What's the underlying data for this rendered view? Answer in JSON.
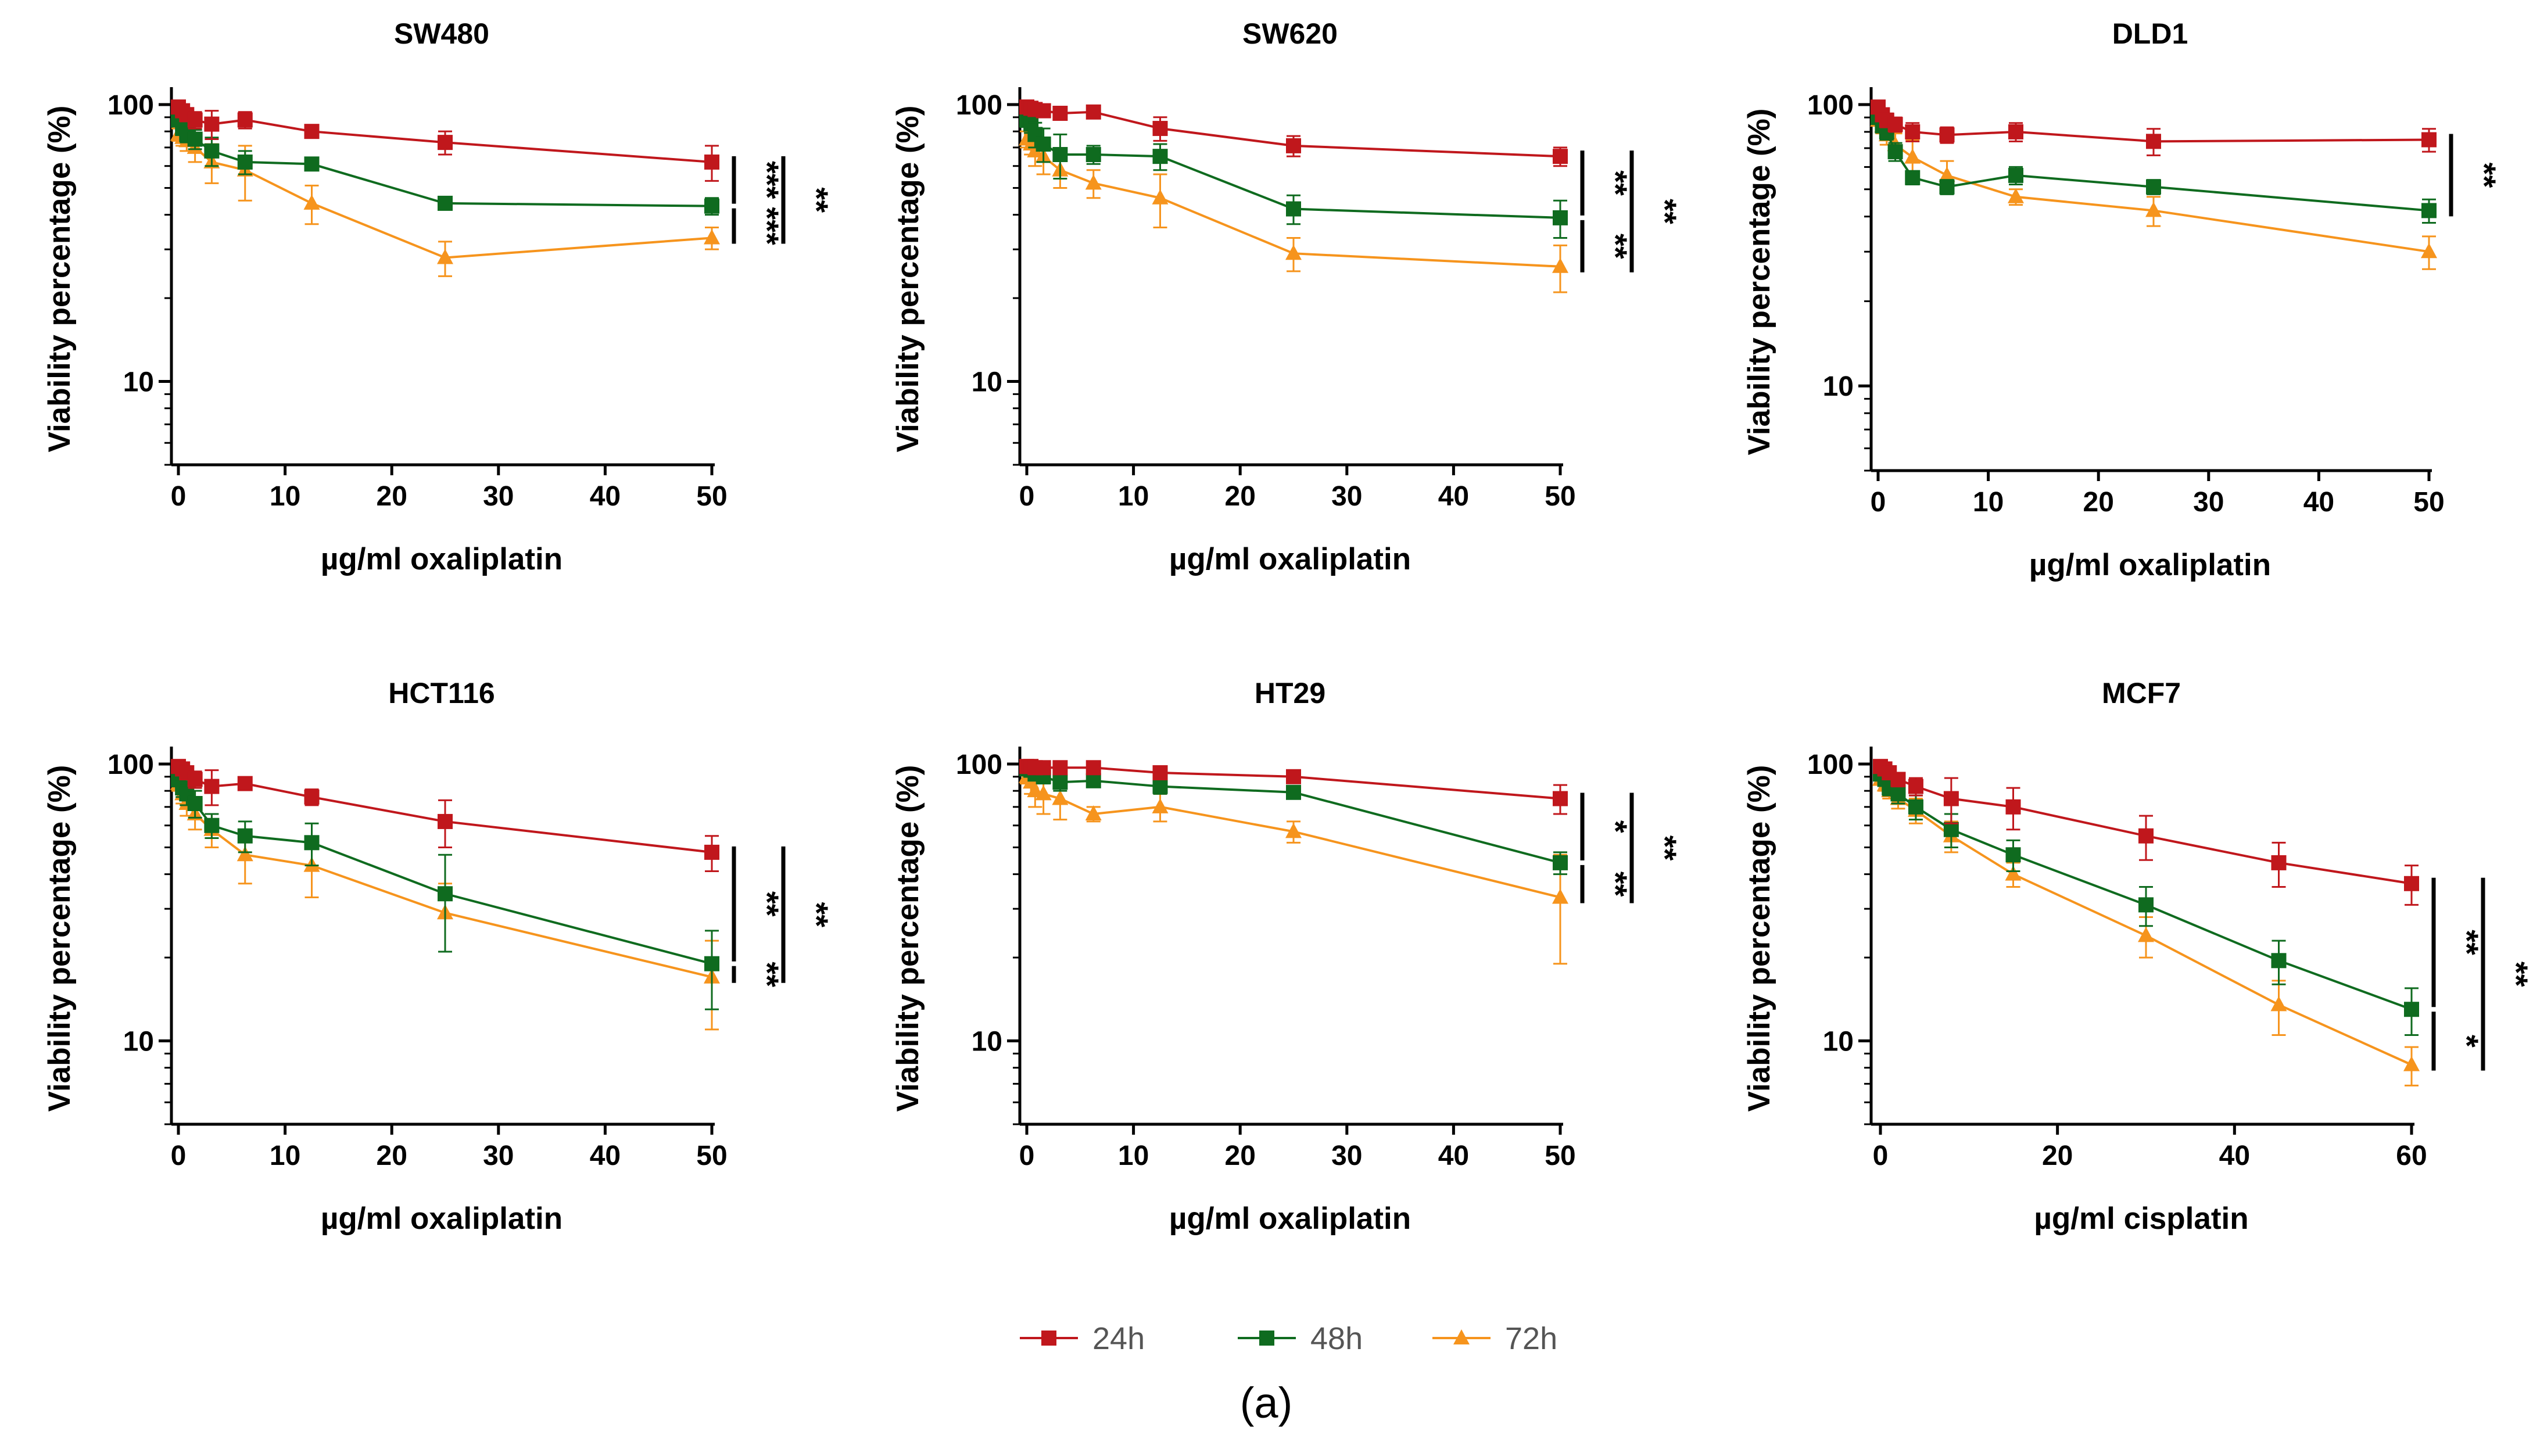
{
  "colors": {
    "24h": "#c0171c",
    "48h": "#0f6b1f",
    "72h": "#f6941d"
  },
  "legend": [
    {
      "key": "24h",
      "label": "24h",
      "marker": "square"
    },
    {
      "key": "48h",
      "label": "48h",
      "marker": "square"
    },
    {
      "key": "72h",
      "label": "72h",
      "marker": "triangle"
    }
  ],
  "caption": "(a)",
  "chart_data": [
    {
      "type": "line",
      "title": "SW480",
      "xlabel": "µg/ml oxaliplatin",
      "ylabel": "Viability percentage (%)",
      "yscale": "log",
      "xlim": [
        0,
        50
      ],
      "ylim": [
        5,
        100
      ],
      "xticks": [
        0,
        10,
        20,
        30,
        40,
        50
      ],
      "yticks": [
        10,
        100
      ],
      "x": [
        0,
        0.39,
        0.78,
        1.56,
        3.125,
        6.25,
        12.5,
        25,
        50
      ],
      "series": [
        {
          "name": "24h",
          "values": [
            98,
            95,
            92,
            88,
            85,
            88,
            80,
            73,
            62
          ],
          "errors": [
            3,
            4,
            5,
            6,
            10,
            6,
            4,
            7,
            9
          ]
        },
        {
          "name": "48h",
          "values": [
            88,
            82,
            78,
            75,
            68,
            62,
            61,
            44,
            43
          ],
          "errors": [
            4,
            4,
            5,
            6,
            8,
            6,
            3,
            2,
            3
          ]
        },
        {
          "name": "72h",
          "values": [
            78,
            76,
            74,
            70,
            62,
            58,
            44,
            28,
            33
          ],
          "errors": [
            4,
            5,
            6,
            8,
            10,
            13,
            7,
            4,
            3
          ]
        }
      ],
      "significance": [
        {
          "from": "24h",
          "to": "48h",
          "label": "***"
        },
        {
          "from": "48h",
          "to": "72h",
          "label": "***"
        },
        {
          "from": "24h",
          "to": "72h",
          "label": "**"
        }
      ]
    },
    {
      "type": "line",
      "title": "SW620",
      "xlabel": "µg/ml oxaliplatin",
      "ylabel": "Viability percentage (%)",
      "yscale": "log",
      "xlim": [
        0,
        50
      ],
      "ylim": [
        5,
        100
      ],
      "xticks": [
        0,
        10,
        20,
        30,
        40,
        50
      ],
      "yticks": [
        10,
        100
      ],
      "x": [
        0,
        0.39,
        0.78,
        1.56,
        3.125,
        6.25,
        12.5,
        25,
        50
      ],
      "series": [
        {
          "name": "24h",
          "values": [
            98,
            97,
            96,
            95,
            93,
            94,
            82,
            71,
            65
          ],
          "errors": [
            3,
            4,
            4,
            5,
            4,
            4,
            8,
            6,
            5
          ]
        },
        {
          "name": "48h",
          "values": [
            88,
            85,
            78,
            72,
            66,
            66,
            65,
            42,
            39
          ],
          "errors": [
            5,
            6,
            8,
            10,
            12,
            5,
            7,
            5,
            6
          ]
        },
        {
          "name": "72h",
          "values": [
            75,
            72,
            68,
            65,
            58,
            52,
            46,
            29,
            26
          ],
          "errors": [
            5,
            6,
            8,
            9,
            8,
            6,
            10,
            4,
            5
          ]
        }
      ],
      "significance": [
        {
          "from": "24h",
          "to": "48h",
          "label": "**"
        },
        {
          "from": "48h",
          "to": "72h",
          "label": "**"
        },
        {
          "from": "24h",
          "to": "72h",
          "label": "**"
        }
      ]
    },
    {
      "type": "line",
      "title": "DLD1",
      "xlabel": "µg/ml oxaliplatin",
      "ylabel": "Viability percentage (%)",
      "yscale": "log",
      "xlim": [
        0,
        50
      ],
      "ylim": [
        5,
        100
      ],
      "xticks": [
        0,
        10,
        20,
        30,
        40,
        50
      ],
      "yticks": [
        10,
        100
      ],
      "x": [
        0,
        0.39,
        0.78,
        1.56,
        3.125,
        6.25,
        12.5,
        25,
        50
      ],
      "series": [
        {
          "name": "24h",
          "values": [
            98,
            92,
            88,
            85,
            80,
            78,
            80,
            74,
            75
          ],
          "errors": [
            3,
            4,
            5,
            5,
            6,
            5,
            6,
            8,
            7
          ]
        },
        {
          "name": "48h",
          "values": [
            90,
            84,
            80,
            68,
            55,
            51,
            56,
            51,
            42
          ],
          "errors": [
            3,
            4,
            5,
            5,
            3,
            3,
            4,
            3,
            4
          ]
        },
        {
          "name": "72h",
          "values": [
            88,
            84,
            78,
            72,
            65,
            56,
            47,
            42,
            30
          ],
          "errors": [
            4,
            5,
            6,
            7,
            10,
            7,
            3,
            5,
            4
          ]
        }
      ],
      "significance": [
        {
          "from": "24h",
          "to": "48h",
          "label": "**"
        }
      ]
    },
    {
      "type": "line",
      "title": "HCT116",
      "xlabel": "µg/ml oxaliplatin",
      "ylabel": "Viability percentage (%)",
      "yscale": "log",
      "xlim": [
        0,
        50
      ],
      "ylim": [
        5,
        100
      ],
      "xticks": [
        0,
        10,
        20,
        30,
        40,
        50
      ],
      "yticks": [
        10,
        100
      ],
      "x": [
        0,
        0.39,
        0.78,
        1.56,
        3.125,
        6.25,
        12.5,
        25,
        50
      ],
      "series": [
        {
          "name": "24h",
          "values": [
            98,
            96,
            93,
            88,
            83,
            85,
            76,
            62,
            48
          ],
          "errors": [
            3,
            4,
            5,
            6,
            12,
            4,
            5,
            12,
            7
          ]
        },
        {
          "name": "48h",
          "values": [
            88,
            82,
            78,
            72,
            60,
            55,
            52,
            34,
            19
          ],
          "errors": [
            5,
            6,
            7,
            8,
            6,
            7,
            9,
            13,
            6
          ]
        },
        {
          "name": "72h",
          "values": [
            85,
            78,
            72,
            66,
            58,
            47,
            43,
            29,
            17
          ],
          "errors": [
            5,
            6,
            7,
            8,
            8,
            10,
            10,
            8,
            6
          ]
        }
      ],
      "significance": [
        {
          "from": "24h",
          "to": "48h",
          "label": "**"
        },
        {
          "from": "48h",
          "to": "72h",
          "label": "**"
        },
        {
          "from": "24h",
          "to": "72h",
          "label": "**"
        }
      ]
    },
    {
      "type": "line",
      "title": "HT29",
      "xlabel": "µg/ml oxaliplatin",
      "ylabel": "Viability percentage (%)",
      "yscale": "log",
      "xlim": [
        0,
        50
      ],
      "ylim": [
        5,
        100
      ],
      "xticks": [
        0,
        10,
        20,
        30,
        40,
        50
      ],
      "yticks": [
        10,
        100
      ],
      "x": [
        0,
        0.39,
        0.78,
        1.56,
        3.125,
        6.25,
        12.5,
        25,
        50
      ],
      "series": [
        {
          "name": "24h",
          "values": [
            98,
            98,
            97,
            97,
            97,
            97,
            93,
            90,
            75
          ],
          "errors": [
            2,
            2,
            3,
            3,
            3,
            3,
            3,
            4,
            9
          ]
        },
        {
          "name": "48h",
          "values": [
            96,
            95,
            92,
            90,
            86,
            87,
            83,
            79,
            44
          ],
          "errors": [
            3,
            3,
            4,
            5,
            6,
            4,
            5,
            4,
            4
          ]
        },
        {
          "name": "72h",
          "values": [
            90,
            86,
            80,
            78,
            75,
            66,
            70,
            57,
            33
          ],
          "errors": [
            5,
            8,
            10,
            12,
            12,
            4,
            8,
            5,
            14
          ]
        }
      ],
      "significance": [
        {
          "from": "24h",
          "to": "48h",
          "label": "*"
        },
        {
          "from": "48h",
          "to": "72h",
          "label": "**"
        },
        {
          "from": "24h",
          "to": "72h",
          "label": "**"
        }
      ]
    },
    {
      "type": "line",
      "title": "MCF7",
      "xlabel": "µg/ml cisplatin",
      "ylabel": "Viability percentage (%)",
      "yscale": "log",
      "xlim": [
        0,
        60
      ],
      "ylim": [
        5,
        100
      ],
      "xticks": [
        0,
        20,
        40,
        60
      ],
      "yticks": [
        10,
        100
      ],
      "x": [
        0,
        0.5,
        1,
        2,
        4,
        8,
        15,
        30,
        45,
        60
      ],
      "series": [
        {
          "name": "24h",
          "values": [
            98,
            96,
            93,
            88,
            83,
            75,
            70,
            55,
            44,
            37
          ],
          "errors": [
            3,
            3,
            4,
            5,
            6,
            14,
            12,
            10,
            8,
            6
          ]
        },
        {
          "name": "48h",
          "values": [
            92,
            88,
            82,
            78,
            70,
            58,
            47,
            31,
            19.5,
            13
          ],
          "errors": [
            3,
            4,
            5,
            6,
            7,
            8,
            6,
            5,
            3.5,
            2.5
          ]
        },
        {
          "name": "72h",
          "values": [
            88,
            84,
            80,
            75,
            68,
            55,
            40,
            24,
            13.5,
            8.2
          ],
          "errors": [
            3,
            4,
            5,
            6,
            7,
            7,
            4,
            4,
            3,
            1.3
          ]
        }
      ],
      "significance": [
        {
          "from": "24h",
          "to": "48h",
          "label": "**"
        },
        {
          "from": "48h",
          "to": "72h",
          "label": "*"
        },
        {
          "from": "24h",
          "to": "72h",
          "label": "**"
        }
      ]
    }
  ]
}
